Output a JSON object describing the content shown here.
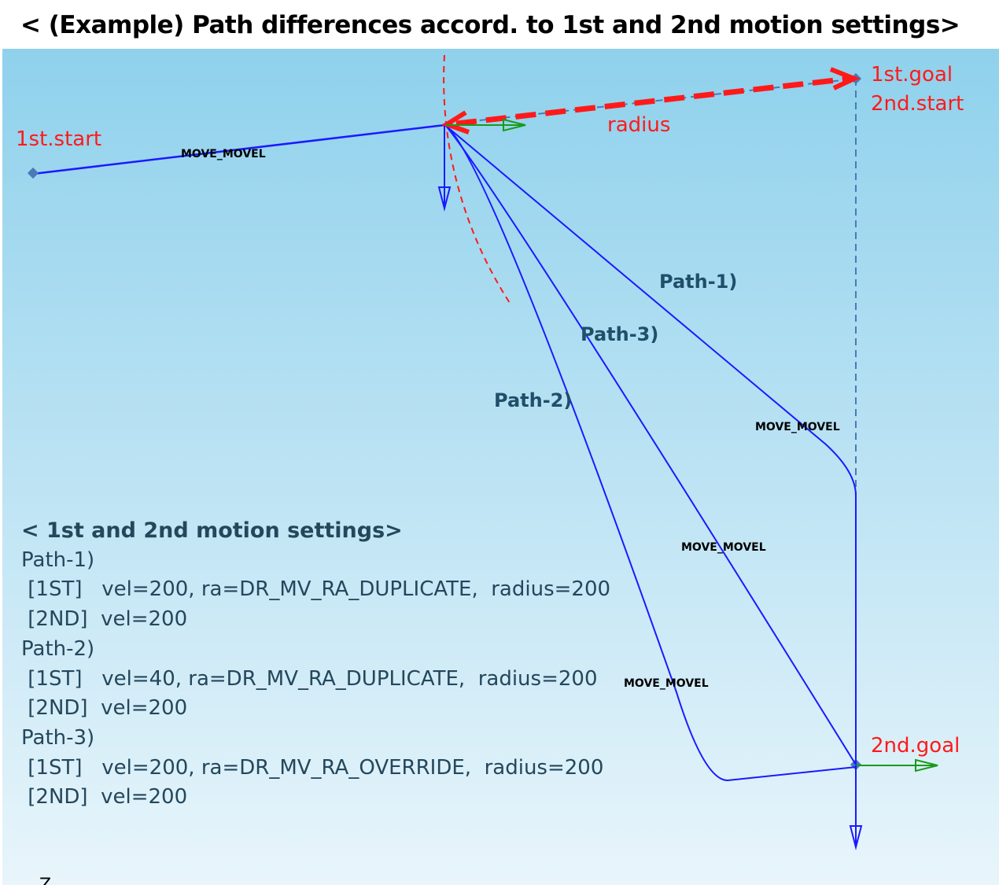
{
  "title": "< (Example) Path differences accord. to 1st and 2nd motion settings>",
  "diagram": {
    "labels": {
      "first_start": "1st.start",
      "first_goal": "1st.goal",
      "second_start": "2nd.start",
      "second_goal": "2nd.goal",
      "radius": "radius",
      "path1": "Path-1)",
      "path2": "Path-2)",
      "path3": "Path-3)",
      "move_label_1": "MOVE_MOVEL",
      "move_label_2": "MOVE_MOVEL",
      "move_label_3": "MOVE_MOVEL",
      "move_label_4": "MOVE_MOVEL",
      "axis_corner": "Z"
    },
    "colors": {
      "path": "#1a1aff",
      "radius": "#ff1a1a",
      "x_axis": "#1a9a1a",
      "labels": "#1f4f6a"
    }
  },
  "settings": {
    "heading": "< 1st and 2nd motion settings>",
    "lines": [
      "Path-1)",
      " [1ST]   vel=200, ra=DR_MV_RA_DUPLICATE,  radius=200",
      " [2ND]  vel=200",
      "Path-2)",
      " [1ST]   vel=40, ra=DR_MV_RA_DUPLICATE,  radius=200",
      " [2ND]  vel=200",
      "Path-3)",
      " [1ST]   vel=200, ra=DR_MV_RA_OVERRIDE,  radius=200",
      " [2ND]  vel=200"
    ]
  }
}
